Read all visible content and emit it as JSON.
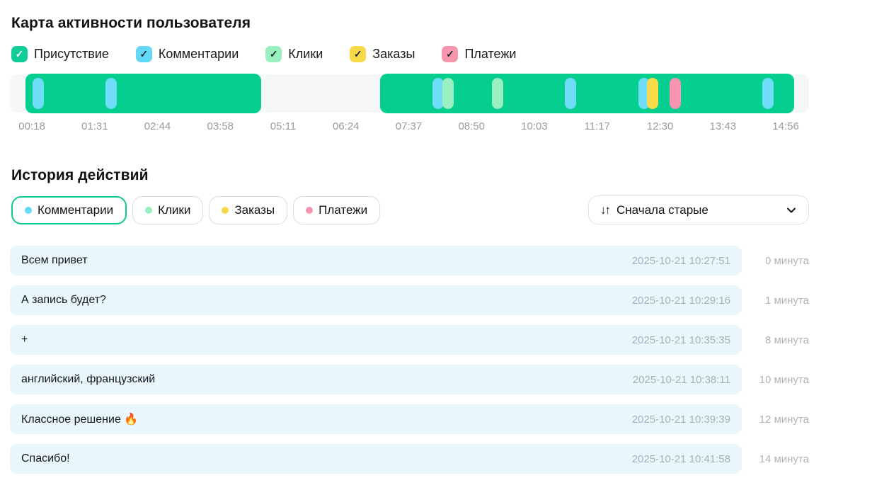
{
  "activity_map": {
    "title": "Карта активности пользователя",
    "legend": {
      "check_glyph": "✓",
      "items": [
        {
          "label": "Присутствие",
          "color": "#0ECD96",
          "check_color": "#ffffff",
          "checked": true
        },
        {
          "label": "Комментарии",
          "color": "#63D9F7",
          "check_color": "#1e2a30",
          "checked": true
        },
        {
          "label": "Клики",
          "color": "#98F0C1",
          "check_color": "#1e2a30",
          "checked": true
        },
        {
          "label": "Заказы",
          "color": "#F8D94A",
          "check_color": "#1e2a30",
          "checked": true
        },
        {
          "label": "Платежи",
          "color": "#F895AE",
          "check_color": "#1e2a30",
          "checked": true
        }
      ]
    }
  },
  "chart_data": {
    "type": "timeline",
    "title": "Карта активности пользователя",
    "track_color": "#F6F7F8",
    "presence_color": "#05CE8F",
    "marker_colors": {
      "comment": "#6FDCF8",
      "click": "#98F0C1",
      "order": "#F8DC49",
      "payment": "#F995AF"
    },
    "presence_segments_pct": [
      {
        "start": 1.95,
        "end": 31.44
      },
      {
        "start": 46.32,
        "end": 98.14
      }
    ],
    "markers": [
      {
        "type": "comment",
        "pct": 2.83
      },
      {
        "type": "comment",
        "pct": 11.96
      },
      {
        "type": "comment",
        "pct": 52.88
      },
      {
        "type": "click",
        "pct": 54.12
      },
      {
        "type": "click",
        "pct": 60.32
      },
      {
        "type": "comment",
        "pct": 69.44
      },
      {
        "type": "comment",
        "pct": 78.65
      },
      {
        "type": "order",
        "pct": 79.72
      },
      {
        "type": "payment",
        "pct": 82.55
      },
      {
        "type": "comment",
        "pct": 94.15
      }
    ],
    "ticks": [
      {
        "label": "00:18",
        "pct": 2.75
      },
      {
        "label": "01:31",
        "pct": 10.61
      },
      {
        "label": "02:44",
        "pct": 18.47
      },
      {
        "label": "03:58",
        "pct": 26.33
      },
      {
        "label": "05:11",
        "pct": 34.19
      },
      {
        "label": "06:24",
        "pct": 42.05
      },
      {
        "label": "07:37",
        "pct": 49.91
      },
      {
        "label": "08:50",
        "pct": 57.77
      },
      {
        "label": "10:03",
        "pct": 65.63
      },
      {
        "label": "11:17",
        "pct": 73.49
      },
      {
        "label": "12:30",
        "pct": 81.36
      },
      {
        "label": "13:43",
        "pct": 89.22
      },
      {
        "label": "14:56",
        "pct": 97.08
      }
    ]
  },
  "history": {
    "title": "История действий",
    "chips": [
      {
        "label": "Комментарии",
        "dot_color": "#63D9F7",
        "active": true
      },
      {
        "label": "Клики",
        "dot_color": "#98F0C1",
        "active": false
      },
      {
        "label": "Заказы",
        "dot_color": "#F8D94A",
        "active": false
      },
      {
        "label": "Платежи",
        "dot_color": "#F895AE",
        "active": false
      }
    ],
    "sort": {
      "icon": "↓↑",
      "label": "Сначала старые"
    },
    "rows": [
      {
        "text": "Всем привет",
        "timestamp": "2025-10-21 10:27:51",
        "offset": "0 минута"
      },
      {
        "text": "А запись будет?",
        "timestamp": "2025-10-21 10:29:16",
        "offset": "1 минута"
      },
      {
        "text": "+",
        "timestamp": "2025-10-21 10:35:35",
        "offset": "8 минута"
      },
      {
        "text": "английский, французский",
        "timestamp": "2025-10-21 10:38:11",
        "offset": "10 минута"
      },
      {
        "text": "Классное решение 🔥",
        "timestamp": "2025-10-21 10:39:39",
        "offset": "12 минута"
      },
      {
        "text": "Спасибо!",
        "timestamp": "2025-10-21 10:41:58",
        "offset": "14 минута"
      }
    ]
  }
}
